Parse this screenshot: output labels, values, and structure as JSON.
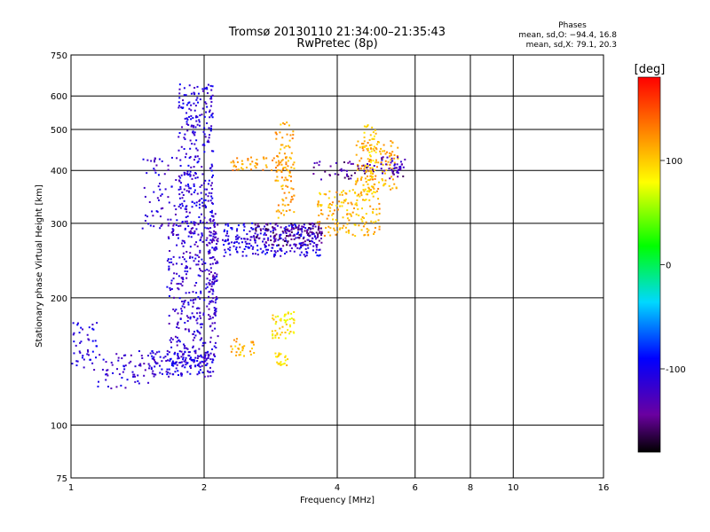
{
  "header": {
    "title_line1": "Tromsø 20130110 21:34:00–21:35:43",
    "title_line2": "RwPretec (8p)",
    "phase_title": "Phases",
    "phase_o": "mean, sd,O: −94.4, 16.8",
    "phase_x": "mean, sd,X:  79.1, 20.3"
  },
  "chart_data": {
    "type": "scatter",
    "xlabel": "Frequency [MHz]",
    "ylabel": "Stationary phase Virtual Height [km]",
    "x_scale": "log",
    "y_scale": "log",
    "xlim": [
      1,
      16
    ],
    "ylim": [
      75,
      750
    ],
    "x_ticks": [
      1,
      2,
      4,
      6,
      8,
      10,
      16
    ],
    "x_tick_labels": [
      "1",
      "2",
      "4",
      "6",
      "8",
      "10",
      "16"
    ],
    "x_grid": [
      2,
      4,
      6,
      8,
      10
    ],
    "y_ticks": [
      75,
      100,
      200,
      300,
      400,
      500,
      600,
      750
    ],
    "y_tick_labels": [
      "75",
      "100",
      "200",
      "300",
      "400",
      "500",
      "600",
      "750"
    ],
    "y_grid": [
      100,
      200,
      300,
      400,
      500,
      600
    ],
    "grid": true,
    "colorbar": {
      "label": "[deg]",
      "range": [
        -180,
        180
      ],
      "ticks": [
        100,
        0,
        -100
      ],
      "tick_labels": [
        "100",
        "0",
        "-100"
      ]
    },
    "traces": [
      {
        "x_range": [
          1.0,
          1.15
        ],
        "y_range": [
          135,
          175
        ],
        "phase": -110,
        "count": 45
      },
      {
        "x_range": [
          1.15,
          1.5
        ],
        "y_range": [
          122,
          150
        ],
        "phase": -115,
        "count": 60
      },
      {
        "x_range": [
          1.5,
          2.1
        ],
        "y_range": [
          130,
          150
        ],
        "phase": -110,
        "count": 150
      },
      {
        "x_range": [
          1.65,
          2.15
        ],
        "y_range": [
          140,
          300
        ],
        "phase": -115,
        "count": 350
      },
      {
        "x_range": [
          1.75,
          2.1
        ],
        "y_range": [
          300,
          640
        ],
        "phase": -110,
        "count": 280
      },
      {
        "x_range": [
          1.45,
          1.75
        ],
        "y_range": [
          290,
          430
        ],
        "phase": -115,
        "count": 60
      },
      {
        "x_range": [
          2.05,
          2.15
        ],
        "y_range": [
          180,
          320
        ],
        "phase": -120,
        "count": 80
      },
      {
        "x_range": [
          2.2,
          3.7
        ],
        "y_range": [
          250,
          300
        ],
        "phase": -105,
        "count": 260
      },
      {
        "x_range": [
          2.6,
          3.7
        ],
        "y_range": [
          265,
          300
        ],
        "phase": -150,
        "count": 120
      },
      {
        "x_range": [
          2.3,
          3.2
        ],
        "y_range": [
          400,
          430
        ],
        "phase": 120,
        "count": 60
      },
      {
        "x_range": [
          2.9,
          3.2
        ],
        "y_range": [
          300,
          520
        ],
        "phase": 115,
        "count": 90
      },
      {
        "x_range": [
          2.85,
          3.2
        ],
        "y_range": [
          160,
          185
        ],
        "phase": 90,
        "count": 50
      },
      {
        "x_range": [
          2.3,
          2.6
        ],
        "y_range": [
          145,
          160
        ],
        "phase": 110,
        "count": 30
      },
      {
        "x_range": [
          2.9,
          3.1
        ],
        "y_range": [
          138,
          148
        ],
        "phase": 95,
        "count": 25
      },
      {
        "x_range": [
          3.6,
          5.0
        ],
        "y_range": [
          280,
          360
        ],
        "phase": 110,
        "count": 160
      },
      {
        "x_range": [
          4.4,
          5.5
        ],
        "y_range": [
          360,
          470
        ],
        "phase": 115,
        "count": 120
      },
      {
        "x_range": [
          3.5,
          5.7
        ],
        "y_range": [
          380,
          420
        ],
        "phase": -140,
        "count": 60
      },
      {
        "x_range": [
          4.6,
          4.9
        ],
        "y_range": [
          350,
          520
        ],
        "phase": 100,
        "count": 60
      },
      {
        "x_range": [
          5.0,
          5.7
        ],
        "y_range": [
          390,
          430
        ],
        "phase": -120,
        "count": 30
      }
    ]
  }
}
